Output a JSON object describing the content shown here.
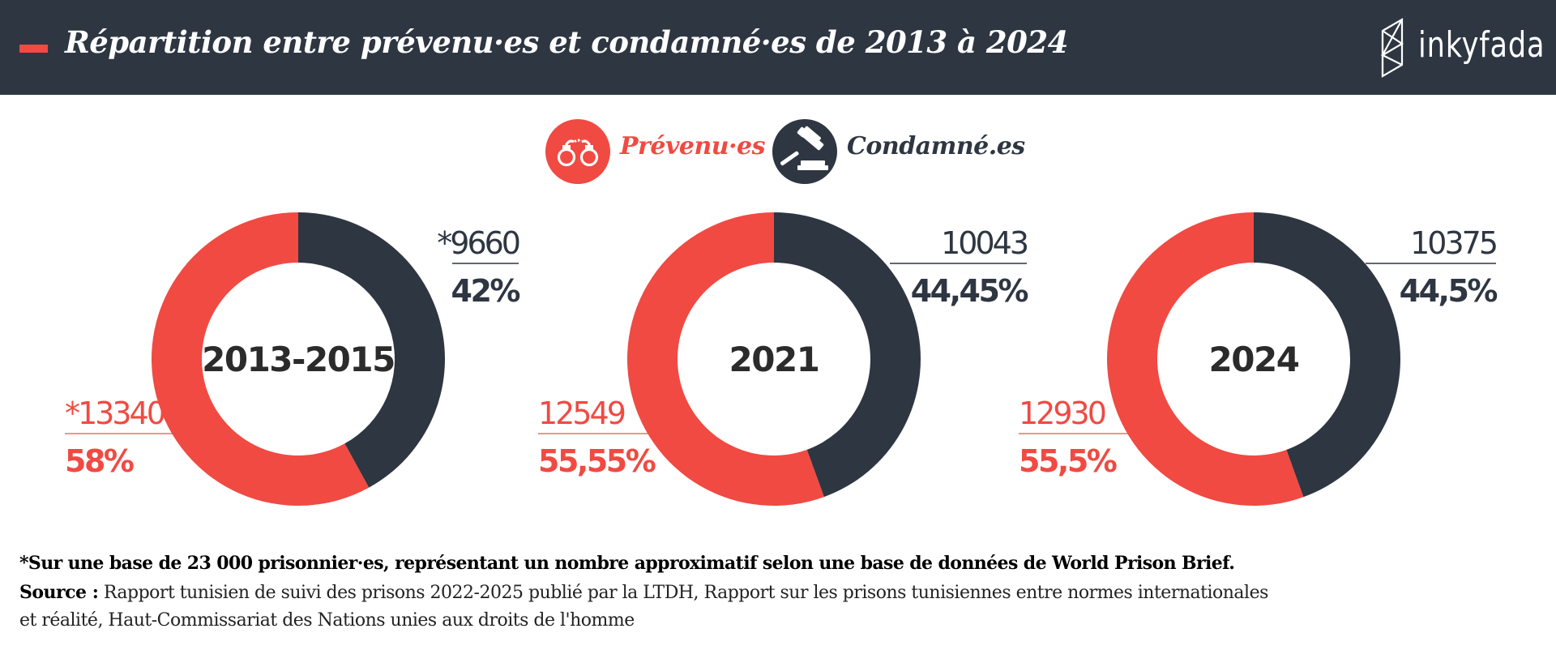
{
  "header": {
    "title": "Répartition entre prévenu·es et condamné·es de 2013 à 2024",
    "logo_text": "inkyfada"
  },
  "legend": [
    {
      "label": "Prévenu·es",
      "icon": "handcuffs-icon",
      "color": "#f04a42"
    },
    {
      "label": "Condamné.es",
      "icon": "gavel-icon",
      "color": "#2e3642"
    }
  ],
  "colors": {
    "prevenus": "#f04a42",
    "condamnes": "#2e3642"
  },
  "chart_data": [
    {
      "type": "pie",
      "center_label": "2013-2015",
      "slices": [
        {
          "series": "Condamné.es",
          "count_label": "*9660",
          "percent_label": "42%",
          "value": 42
        },
        {
          "series": "Prévenu·es",
          "count_label": "*13340",
          "percent_label": "58%",
          "value": 58
        }
      ]
    },
    {
      "type": "pie",
      "center_label": "2021",
      "slices": [
        {
          "series": "Condamné.es",
          "count_label": "10043",
          "percent_label": "44,45%",
          "value": 44.45
        },
        {
          "series": "Prévenu·es",
          "count_label": "12549",
          "percent_label": "55,55%",
          "value": 55.55
        }
      ]
    },
    {
      "type": "pie",
      "center_label": "2024",
      "slices": [
        {
          "series": "Condamné.es",
          "count_label": "10375",
          "percent_label": "44,5%",
          "value": 44.5
        },
        {
          "series": "Prévenu·es",
          "count_label": "12930",
          "percent_label": "55,5%",
          "value": 55.5
        }
      ]
    }
  ],
  "footer": {
    "note": "*Sur une base de 23 000 prisonnier·es, représentant un nombre approximatif selon une base de données de World Prison Brief.",
    "source_label": "Source :",
    "source_text": "Rapport tunisien de suivi des prisons 2022-2025 publié par la LTDH, Rapport sur les prisons tunisiennes entre normes internationales et réalité, Haut-Commissariat des Nations unies aux droits de l'homme"
  }
}
